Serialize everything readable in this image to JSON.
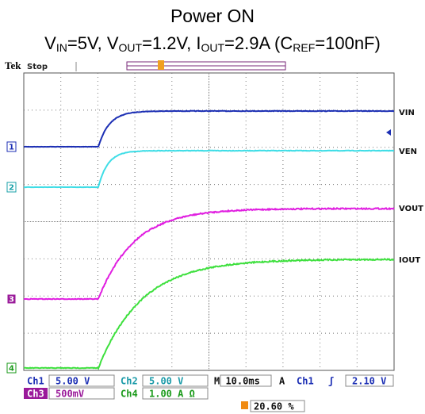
{
  "header": {
    "title": "Power ON",
    "subtitle": [
      "V",
      "IN",
      "=5V, V",
      "OUT",
      "=1.2V, I",
      "OUT",
      "=2.9A (C",
      "REF",
      "=100nF)"
    ]
  },
  "scope": {
    "brand": "Tek",
    "status": "Stop",
    "trigger_marker": "T",
    "channels": [
      {
        "marker": "1",
        "label": "VIN"
      },
      {
        "marker": "2",
        "label": "VEN"
      },
      {
        "marker": "3",
        "label": "VOUT"
      },
      {
        "marker": "4",
        "label": "IOUT"
      }
    ],
    "readout": {
      "row1": [
        "Ch1",
        "5.00 V",
        "Ch2",
        "5.00 V",
        "M 10.0ms",
        "A",
        "Ch1",
        "ʃ",
        "2.10 V"
      ],
      "row2": [
        "Ch3",
        "500mV",
        "Ch4",
        "1.00 A Ω"
      ],
      "row3": [
        "20.60 %"
      ]
    }
  }
}
